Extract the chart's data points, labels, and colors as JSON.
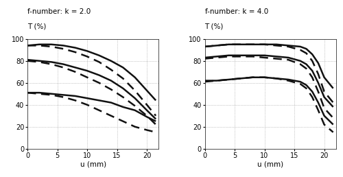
{
  "title_left": "f-number: k = 2.0",
  "title_right": "f-number: k = 4.0",
  "ylabel": "T (%)",
  "xlabel": "u (mm)",
  "xlim": [
    0,
    22
  ],
  "ylim": [
    0,
    100
  ],
  "xticks": [
    0,
    5,
    10,
    15,
    20
  ],
  "yticks": [
    0,
    20,
    40,
    60,
    80,
    100
  ],
  "left_curves": [
    {
      "x": [
        0,
        2,
        4,
        6,
        8,
        10,
        12,
        14,
        16,
        18,
        20,
        21.5
      ],
      "y": [
        94,
        95,
        95,
        94,
        92,
        89,
        85,
        80,
        74,
        65,
        53,
        44
      ],
      "style": "solid",
      "lw": 1.8
    },
    {
      "x": [
        0,
        2,
        4,
        6,
        8,
        10,
        12,
        14,
        16,
        18,
        20,
        21.5
      ],
      "y": [
        94,
        94,
        93,
        91,
        88,
        84,
        79,
        72,
        64,
        53,
        40,
        30
      ],
      "style": "dashed",
      "lw": 1.8
    },
    {
      "x": [
        0,
        2,
        4,
        6,
        8,
        10,
        12,
        14,
        16,
        18,
        20,
        21.5
      ],
      "y": [
        81,
        80,
        79,
        77,
        74,
        71,
        67,
        62,
        55,
        46,
        35,
        27
      ],
      "style": "solid",
      "lw": 1.8
    },
    {
      "x": [
        0,
        2,
        4,
        6,
        8,
        10,
        12,
        14,
        16,
        18,
        20,
        21.5
      ],
      "y": [
        80,
        79,
        77,
        74,
        70,
        65,
        60,
        54,
        47,
        39,
        30,
        22
      ],
      "style": "dashed",
      "lw": 1.8
    },
    {
      "x": [
        0,
        2,
        4,
        6,
        8,
        10,
        12,
        14,
        16,
        18,
        20,
        21.5
      ],
      "y": [
        51,
        51,
        50,
        49,
        48,
        46,
        44,
        42,
        38,
        35,
        29,
        25
      ],
      "style": "solid",
      "lw": 1.8
    },
    {
      "x": [
        0,
        2,
        4,
        6,
        8,
        10,
        12,
        14,
        16,
        18,
        20,
        21.5
      ],
      "y": [
        51,
        50,
        49,
        47,
        44,
        40,
        35,
        30,
        25,
        20,
        17,
        15
      ],
      "style": "dashed",
      "lw": 1.8
    }
  ],
  "right_curves": [
    {
      "x": [
        0,
        2,
        4,
        6,
        8,
        10,
        12,
        14,
        16,
        17,
        18,
        19,
        20,
        21.5
      ],
      "y": [
        93,
        94,
        95,
        95,
        95,
        95,
        95,
        94,
        93,
        91,
        86,
        78,
        65,
        55
      ],
      "style": "solid",
      "lw": 1.8
    },
    {
      "x": [
        0,
        2,
        4,
        6,
        8,
        10,
        12,
        14,
        16,
        17,
        18,
        19,
        20,
        21.5
      ],
      "y": [
        93,
        94,
        95,
        95,
        95,
        95,
        94,
        93,
        90,
        87,
        80,
        68,
        52,
        42
      ],
      "style": "dashed",
      "lw": 1.8
    },
    {
      "x": [
        0,
        2,
        4,
        6,
        8,
        10,
        12,
        14,
        16,
        17,
        18,
        19,
        20,
        21.5
      ],
      "y": [
        83,
        84,
        85,
        85,
        85,
        85,
        84,
        83,
        80,
        77,
        71,
        60,
        47,
        38
      ],
      "style": "solid",
      "lw": 1.8
    },
    {
      "x": [
        0,
        2,
        4,
        6,
        8,
        10,
        12,
        14,
        16,
        17,
        18,
        19,
        20,
        21.5
      ],
      "y": [
        82,
        83,
        84,
        84,
        84,
        83,
        82,
        81,
        77,
        73,
        65,
        52,
        37,
        28
      ],
      "style": "dashed",
      "lw": 1.8
    },
    {
      "x": [
        0,
        2,
        4,
        6,
        8,
        10,
        12,
        14,
        16,
        17,
        18,
        19,
        20,
        21.5
      ],
      "y": [
        62,
        62,
        63,
        64,
        65,
        65,
        64,
        63,
        61,
        58,
        52,
        42,
        30,
        22
      ],
      "style": "solid",
      "lw": 1.8
    },
    {
      "x": [
        0,
        2,
        4,
        6,
        8,
        10,
        12,
        14,
        16,
        17,
        18,
        19,
        20,
        21.5
      ],
      "y": [
        61,
        62,
        63,
        64,
        65,
        65,
        64,
        62,
        59,
        55,
        47,
        35,
        22,
        15
      ],
      "style": "dashed",
      "lw": 1.8
    }
  ],
  "line_color": "#111111",
  "grid_color": "#999999",
  "bg_color": "#ffffff",
  "title_fontsize": 7.5,
  "label_fontsize": 7.5,
  "tick_fontsize": 7.0
}
